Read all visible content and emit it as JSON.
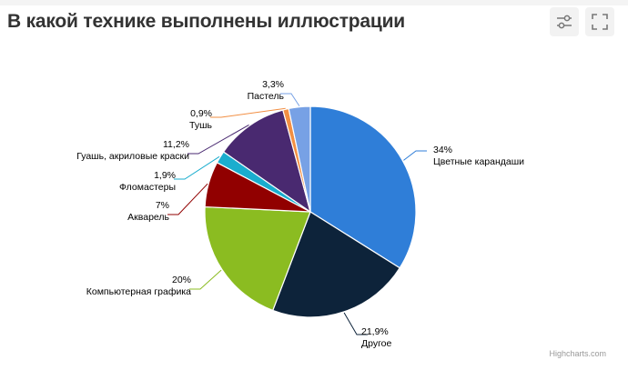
{
  "header": {
    "title": "В какой технике выполнены иллюстрации",
    "filter_icon": "sliders-icon",
    "fullscreen_icon": "fullscreen-icon"
  },
  "credits": "Highcharts.com",
  "chart_data": {
    "type": "pie",
    "title": "В какой технике выполнены иллюстрации",
    "start_angle_deg": 0,
    "direction": "clockwise",
    "slices": [
      {
        "name": "Цветные карандаши",
        "value": 34,
        "label": "34%",
        "color": "#2f7ed8"
      },
      {
        "name": "Другое",
        "value": 21.9,
        "label": "21,9%",
        "color": "#0d233a"
      },
      {
        "name": "Компьютерная графика",
        "value": 20,
        "label": "20%",
        "color": "#8bbc21"
      },
      {
        "name": "Акварель",
        "value": 7,
        "label": "7%",
        "color": "#910000"
      },
      {
        "name": "Фломастеры",
        "value": 1.9,
        "label": "1,9%",
        "color": "#1aadce"
      },
      {
        "name": "Гуашь, акриловые краски",
        "value": 11.2,
        "label": "11,2%",
        "color": "#492970"
      },
      {
        "name": "Тушь",
        "value": 0.9,
        "label": "0,9%",
        "color": "#f28f43"
      },
      {
        "name": "Пастель",
        "value": 3.3,
        "label": "3,3%",
        "color": "#77a1e5"
      }
    ]
  }
}
